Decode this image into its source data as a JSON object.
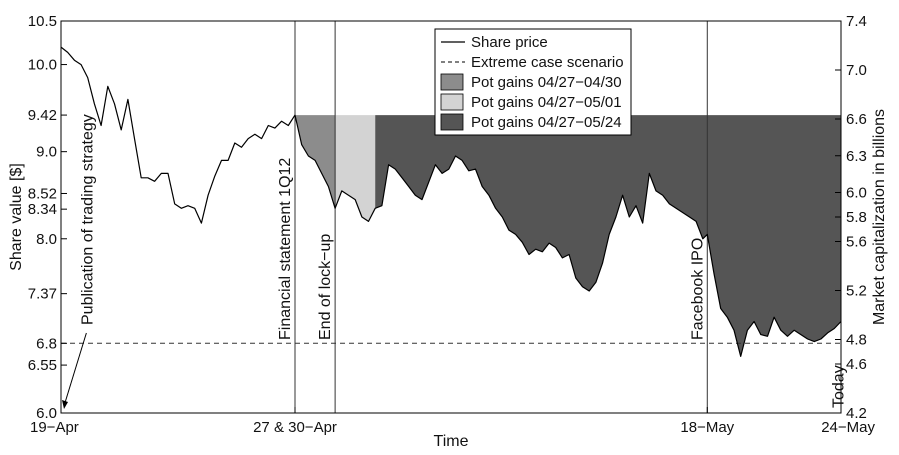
{
  "chart_data": {
    "type": "line",
    "xlabel": "Time",
    "ylabel_left": "Share value [$]",
    "ylabel_right": "Market capitalization in billions",
    "ylim_left": [
      6.0,
      10.5
    ],
    "ylim_right": [
      4.2,
      7.4
    ],
    "xlim_days": [
      0,
      35
    ],
    "x_ticks": [
      {
        "day": 0,
        "label": "19−Apr"
      },
      {
        "day": 10.5,
        "label": "27 & 30−Apr"
      },
      {
        "day": 29,
        "label": "18−May"
      },
      {
        "day": 35,
        "label": "24−May"
      }
    ],
    "y_ticks_left": [
      {
        "value": 6.0,
        "label": "6.0"
      },
      {
        "value": 6.55,
        "label": "6.55"
      },
      {
        "value": 6.8,
        "label": "6.8"
      },
      {
        "value": 7.37,
        "label": "7.37"
      },
      {
        "value": 8.0,
        "label": "8.0"
      },
      {
        "value": 8.34,
        "label": "8.34"
      },
      {
        "value": 8.52,
        "label": "8.52"
      },
      {
        "value": 9.0,
        "label": "9.0"
      },
      {
        "value": 9.42,
        "label": "9.42"
      },
      {
        "value": 10.0,
        "label": "10.0"
      },
      {
        "value": 10.5,
        "label": "10.5"
      }
    ],
    "y_ticks_right": [
      {
        "value": 4.2,
        "label": "4.2"
      },
      {
        "value": 4.6,
        "label": "4.6"
      },
      {
        "value": 4.8,
        "label": "4.8"
      },
      {
        "value": 5.2,
        "label": "5.2"
      },
      {
        "value": 5.6,
        "label": "5.6"
      },
      {
        "value": 5.8,
        "label": "5.8"
      },
      {
        "value": 6.0,
        "label": "6.0"
      },
      {
        "value": 6.3,
        "label": "6.3"
      },
      {
        "value": 6.6,
        "label": "6.6"
      },
      {
        "value": 7.0,
        "label": "7.0"
      },
      {
        "value": 7.4,
        "label": "7.4"
      }
    ],
    "legend": {
      "placement": "top-center",
      "entries": [
        {
          "label": "Share price",
          "style": "line"
        },
        {
          "label": "Extreme case scenario",
          "style": "dashed"
        },
        {
          "label": "Pot gains 04/27−04/30",
          "style": "fill",
          "color": "#8c8c8c"
        },
        {
          "label": "Pot gains 04/27−05/01",
          "style": "fill",
          "color": "#d3d3d3"
        },
        {
          "label": "Pot gains 04/27−05/24",
          "style": "fill",
          "color": "#555555"
        }
      ]
    },
    "extreme_case_value": 6.8,
    "reference_price": 9.42,
    "shaded_regions": [
      {
        "label": "Pot gains 04/27−04/30",
        "from_day": 10.5,
        "to_day": 12.3,
        "color": "#8c8c8c"
      },
      {
        "label": "Pot gains 04/27−05/01",
        "from_day": 12.3,
        "to_day": 14.1,
        "color": "#d3d3d3"
      },
      {
        "label": "Pot gains 04/27−05/24",
        "from_day": 14.1,
        "to_day": 35,
        "color": "#555555"
      }
    ],
    "event_lines": [
      {
        "day": 10.5,
        "label": "Financial statement 1Q12"
      },
      {
        "day": 12.3,
        "label": "End of lock−up"
      },
      {
        "day": 29,
        "label": "Facebook IPO"
      }
    ],
    "annotations": [
      {
        "label": "Publication of trading strategy",
        "day": 0.6
      },
      {
        "label": "Today",
        "day": 34.3
      }
    ],
    "series": [
      {
        "name": "Share price",
        "points": [
          [
            0.0,
            10.2
          ],
          [
            0.3,
            10.14
          ],
          [
            0.6,
            10.05
          ],
          [
            0.9,
            10.0
          ],
          [
            1.2,
            9.85
          ],
          [
            1.5,
            9.55
          ],
          [
            1.8,
            9.3
          ],
          [
            2.1,
            9.75
          ],
          [
            2.4,
            9.55
          ],
          [
            2.7,
            9.25
          ],
          [
            3.0,
            9.6
          ],
          [
            3.3,
            9.15
          ],
          [
            3.6,
            8.7
          ],
          [
            3.9,
            8.7
          ],
          [
            4.2,
            8.66
          ],
          [
            4.5,
            8.75
          ],
          [
            4.8,
            8.75
          ],
          [
            5.1,
            8.4
          ],
          [
            5.4,
            8.35
          ],
          [
            5.7,
            8.38
          ],
          [
            6.0,
            8.35
          ],
          [
            6.3,
            8.18
          ],
          [
            6.6,
            8.5
          ],
          [
            6.9,
            8.72
          ],
          [
            7.2,
            8.9
          ],
          [
            7.5,
            8.9
          ],
          [
            7.8,
            9.1
          ],
          [
            8.1,
            9.05
          ],
          [
            8.4,
            9.15
          ],
          [
            8.7,
            9.2
          ],
          [
            9.0,
            9.15
          ],
          [
            9.3,
            9.3
          ],
          [
            9.6,
            9.27
          ],
          [
            9.9,
            9.35
          ],
          [
            10.2,
            9.3
          ],
          [
            10.5,
            9.42
          ],
          [
            10.8,
            9.08
          ],
          [
            11.1,
            8.95
          ],
          [
            11.4,
            8.9
          ],
          [
            11.7,
            8.75
          ],
          [
            12.0,
            8.6
          ],
          [
            12.3,
            8.35
          ],
          [
            12.6,
            8.55
          ],
          [
            12.9,
            8.5
          ],
          [
            13.2,
            8.45
          ],
          [
            13.5,
            8.25
          ],
          [
            13.8,
            8.2
          ],
          [
            14.1,
            8.35
          ],
          [
            14.4,
            8.38
          ],
          [
            14.7,
            8.85
          ],
          [
            15.0,
            8.8
          ],
          [
            15.3,
            8.7
          ],
          [
            15.6,
            8.6
          ],
          [
            15.9,
            8.5
          ],
          [
            16.2,
            8.45
          ],
          [
            16.5,
            8.65
          ],
          [
            16.8,
            8.85
          ],
          [
            17.1,
            8.75
          ],
          [
            17.4,
            8.8
          ],
          [
            17.7,
            8.95
          ],
          [
            18.0,
            8.9
          ],
          [
            18.3,
            8.78
          ],
          [
            18.6,
            8.8
          ],
          [
            18.9,
            8.6
          ],
          [
            19.2,
            8.5
          ],
          [
            19.5,
            8.35
          ],
          [
            19.8,
            8.25
          ],
          [
            20.1,
            8.1
          ],
          [
            20.4,
            8.05
          ],
          [
            20.7,
            7.96
          ],
          [
            21.0,
            7.82
          ],
          [
            21.3,
            7.88
          ],
          [
            21.6,
            7.85
          ],
          [
            21.9,
            7.95
          ],
          [
            22.2,
            7.9
          ],
          [
            22.5,
            7.78
          ],
          [
            22.8,
            7.82
          ],
          [
            23.1,
            7.55
          ],
          [
            23.4,
            7.45
          ],
          [
            23.7,
            7.4
          ],
          [
            24.0,
            7.5
          ],
          [
            24.3,
            7.72
          ],
          [
            24.6,
            8.05
          ],
          [
            24.9,
            8.25
          ],
          [
            25.2,
            8.5
          ],
          [
            25.5,
            8.25
          ],
          [
            25.8,
            8.38
          ],
          [
            26.1,
            8.18
          ],
          [
            26.4,
            8.75
          ],
          [
            26.7,
            8.55
          ],
          [
            27.0,
            8.5
          ],
          [
            27.3,
            8.4
          ],
          [
            27.6,
            8.35
          ],
          [
            27.9,
            8.3
          ],
          [
            28.2,
            8.25
          ],
          [
            28.5,
            8.2
          ],
          [
            28.8,
            8.0
          ],
          [
            29.0,
            8.05
          ],
          [
            29.3,
            7.6
          ],
          [
            29.6,
            7.2
          ],
          [
            29.9,
            7.1
          ],
          [
            30.2,
            6.95
          ],
          [
            30.5,
            6.65
          ],
          [
            30.8,
            6.95
          ],
          [
            31.1,
            7.05
          ],
          [
            31.4,
            6.9
          ],
          [
            31.7,
            6.88
          ],
          [
            32.0,
            7.1
          ],
          [
            32.3,
            6.95
          ],
          [
            32.6,
            6.88
          ],
          [
            32.9,
            6.95
          ],
          [
            33.2,
            6.9
          ],
          [
            33.5,
            6.85
          ],
          [
            33.8,
            6.82
          ],
          [
            34.1,
            6.85
          ],
          [
            34.4,
            6.92
          ],
          [
            34.7,
            6.97
          ],
          [
            35.0,
            7.05
          ]
        ]
      }
    ]
  }
}
